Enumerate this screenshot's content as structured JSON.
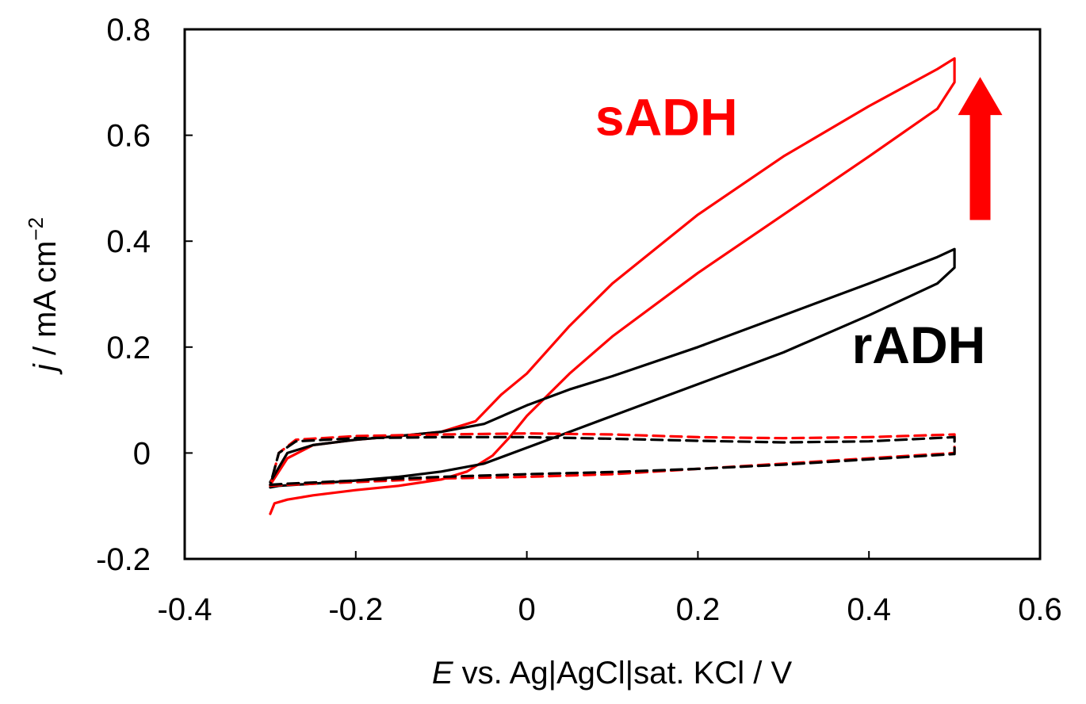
{
  "chart_data": {
    "type": "line",
    "title": "",
    "xlabel_italic": "E",
    "xlabel_rest": " vs. Ag|AgCl|sat. KCl / V",
    "ylabel_italic": "j",
    "ylabel_rest": " / mA cm",
    "ylabel_sup": "−2",
    "xlim": [
      -0.4,
      0.6
    ],
    "ylim": [
      -0.2,
      0.8
    ],
    "x_ticks": [
      -0.4,
      -0.2,
      0,
      0.2,
      0.4,
      0.6
    ],
    "x_tick_labels": [
      "-0.4",
      "-0.2",
      "0",
      "0.2",
      "0.4",
      "0.6"
    ],
    "y_ticks": [
      -0.2,
      0,
      0.2,
      0.4,
      0.6,
      0.8
    ],
    "y_tick_labels": [
      "-0.2",
      "0",
      "0.2",
      "0.4",
      "0.6",
      "0.8"
    ],
    "grid": false,
    "annotations": [
      {
        "text": "sADH",
        "color": "#ff0000",
        "x": 0.08,
        "y": 0.6
      },
      {
        "text": "rADH",
        "color": "#000000",
        "x": 0.38,
        "y": 0.17
      }
    ],
    "arrow": {
      "color": "#ff0000",
      "direction": "up",
      "x": 0.53,
      "y_from": 0.44,
      "y_to": 0.71
    },
    "series": [
      {
        "color": "#ff0000",
        "dash": false,
        "x": [
          -0.3,
          -0.295,
          -0.28,
          -0.25,
          -0.2,
          -0.15,
          -0.1,
          -0.07,
          -0.04,
          -0.02,
          0,
          0.05,
          0.1,
          0.2,
          0.3,
          0.4,
          0.48,
          0.5,
          0.5,
          0.48,
          0.4,
          0.3,
          0.2,
          0.1,
          0.05,
          0,
          -0.03,
          -0.06,
          -0.1,
          -0.15,
          -0.2,
          -0.25,
          -0.28,
          -0.3
        ],
        "y": [
          -0.115,
          -0.095,
          -0.088,
          -0.08,
          -0.07,
          -0.062,
          -0.05,
          -0.035,
          -0.005,
          0.03,
          0.07,
          0.15,
          0.22,
          0.34,
          0.45,
          0.56,
          0.65,
          0.7,
          0.745,
          0.725,
          0.655,
          0.56,
          0.45,
          0.32,
          0.24,
          0.15,
          0.11,
          0.06,
          0.04,
          0.032,
          0.025,
          0.015,
          -0.01,
          -0.06
        ]
      },
      {
        "color": "#000000",
        "dash": false,
        "x": [
          -0.3,
          -0.29,
          -0.25,
          -0.2,
          -0.15,
          -0.1,
          -0.05,
          0,
          0.05,
          0.1,
          0.2,
          0.3,
          0.4,
          0.48,
          0.5,
          0.5,
          0.48,
          0.4,
          0.3,
          0.2,
          0.1,
          0.05,
          0,
          -0.05,
          -0.1,
          -0.15,
          -0.2,
          -0.25,
          -0.28,
          -0.3
        ],
        "y": [
          -0.065,
          -0.062,
          -0.058,
          -0.052,
          -0.045,
          -0.035,
          -0.02,
          0.01,
          0.04,
          0.07,
          0.13,
          0.19,
          0.26,
          0.32,
          0.35,
          0.385,
          0.37,
          0.32,
          0.26,
          0.2,
          0.145,
          0.12,
          0.09,
          0.055,
          0.04,
          0.032,
          0.025,
          0.015,
          0.0,
          -0.055
        ]
      },
      {
        "color": "#ff0000",
        "dash": true,
        "x": [
          -0.3,
          -0.28,
          -0.2,
          -0.1,
          0,
          0.1,
          0.2,
          0.3,
          0.4,
          0.5,
          0.5,
          0.4,
          0.3,
          0.2,
          0.1,
          0,
          -0.1,
          -0.2,
          -0.27,
          -0.29,
          -0.3
        ],
        "y": [
          -0.062,
          -0.06,
          -0.055,
          -0.048,
          -0.045,
          -0.04,
          -0.03,
          -0.02,
          -0.01,
          0.0,
          0.035,
          0.03,
          0.028,
          0.03,
          0.035,
          0.037,
          0.035,
          0.032,
          0.025,
          0.0,
          -0.062
        ]
      },
      {
        "color": "#000000",
        "dash": true,
        "x": [
          -0.3,
          -0.28,
          -0.2,
          -0.1,
          0,
          0.1,
          0.2,
          0.3,
          0.4,
          0.5,
          0.5,
          0.4,
          0.3,
          0.2,
          0.1,
          0,
          -0.1,
          -0.2,
          -0.27,
          -0.29,
          -0.3
        ],
        "y": [
          -0.06,
          -0.058,
          -0.052,
          -0.045,
          -0.04,
          -0.036,
          -0.03,
          -0.022,
          -0.012,
          -0.002,
          0.03,
          0.022,
          0.02,
          0.023,
          0.027,
          0.03,
          0.03,
          0.028,
          0.022,
          0.0,
          -0.06
        ]
      }
    ]
  }
}
